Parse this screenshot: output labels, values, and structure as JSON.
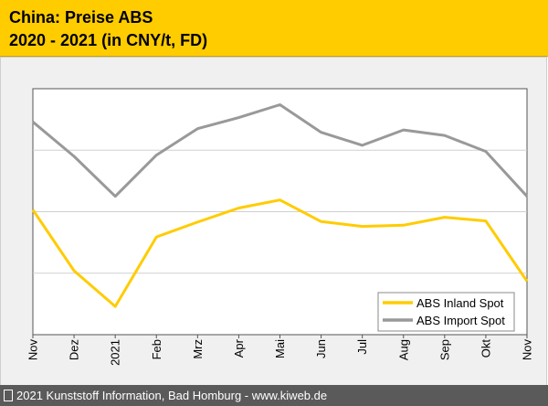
{
  "header": {
    "title_line1": "China: Preise ABS",
    "title_line2": "2020 - 2021 (in CNY/t, FD)"
  },
  "footer": {
    "icon": "info-box-icon",
    "text": "2021 Kunststoff Information, Bad Homburg - www.kiweb.de"
  },
  "colors": {
    "header_bg": "#ffcc00",
    "inland": "#ffcc00",
    "import": "#999999"
  },
  "chart_data": {
    "type": "line",
    "title": "China: Preise ABS 2020 - 2021 (in CNY/t, FD)",
    "xlabel": "",
    "ylabel": "",
    "categories": [
      "Nov",
      "Dez",
      "2021",
      "Feb",
      "Mrz",
      "Apr",
      "Mai",
      "Jun",
      "Jul",
      "Aug",
      "Sep",
      "Okt",
      "Nov"
    ],
    "ylim": [
      0,
      400
    ],
    "y_ticks": [
      0,
      100,
      200,
      300,
      400
    ],
    "y_tick_labels_shown": false,
    "grid": true,
    "legend_position": "bottom-right",
    "series": [
      {
        "name": "ABS Inland Spot",
        "color": "#ffcc00",
        "values": [
          203,
          104,
          46,
          159,
          183,
          206,
          219,
          184,
          176,
          178,
          191,
          185,
          87
        ]
      },
      {
        "name": "ABS Import Spot",
        "color": "#999999",
        "values": [
          346,
          290,
          225,
          292,
          335,
          353,
          374,
          329,
          308,
          333,
          324,
          298,
          225
        ]
      }
    ]
  }
}
